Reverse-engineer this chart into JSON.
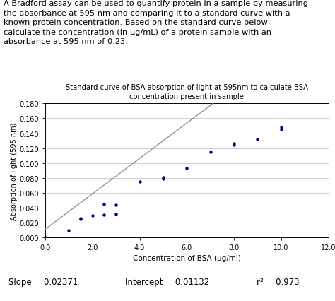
{
  "title_line1": "Standard curve of BSA absorption of light at 595nm to calculate BSA",
  "title_line2": "concentration present in sample",
  "xlabel": "Concentration of BSA (μg/ml)",
  "ylabel": "Absorption of light (595 nm)",
  "scatter_x": [
    0.0,
    1.0,
    1.5,
    1.5,
    2.0,
    2.5,
    2.5,
    3.0,
    3.0,
    4.0,
    5.0,
    5.0,
    6.0,
    7.0,
    8.0,
    8.0,
    9.0,
    10.0,
    10.0
  ],
  "scatter_y": [
    0.0,
    0.01,
    0.025,
    0.026,
    0.03,
    0.031,
    0.045,
    0.032,
    0.044,
    0.075,
    0.079,
    0.081,
    0.093,
    0.115,
    0.124,
    0.126,
    0.132,
    0.145,
    0.148
  ],
  "slope": 0.02371,
  "intercept": 0.01132,
  "r2": 0.973,
  "xlim": [
    0.0,
    12.0
  ],
  "ylim": [
    0.0,
    0.18
  ],
  "xticks": [
    0.0,
    2.0,
    4.0,
    6.0,
    8.0,
    10.0,
    12.0
  ],
  "yticks": [
    0.0,
    0.02,
    0.04,
    0.06,
    0.08,
    0.1,
    0.12,
    0.14,
    0.16,
    0.18
  ],
  "scatter_color": "#000080",
  "line_color": "#888888",
  "footer_slope_label": "Slope = 0.02371",
  "footer_intercept_label": "Intercept = 0.01132",
  "footer_r2_label": "r² = 0.973",
  "text_line1": "A Bradford assay can be used to quantify protein in a sample by measuring",
  "text_line2": "the absorbance at 595 nm and comparing it to a standard curve with a",
  "text_line3": "known protein concentration. Based on the standard curve below,",
  "text_line4": "calculate the concentration (in μg/mL) of a protein sample with an",
  "text_line5": "absorbance at 595 nm of 0.23."
}
